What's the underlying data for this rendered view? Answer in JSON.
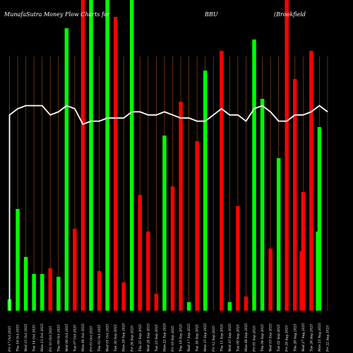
{
  "header": {
    "title": "MunafaSutra  Money Flow  Charts for",
    "symbol": "BBU",
    "company": "(Brookfield"
  },
  "colors": {
    "background": "#000000",
    "inflow": "#00ff00",
    "outflow": "#ff0000",
    "grid": "#8b4513",
    "line": "#ffffff",
    "text": "#ffffff"
  },
  "chart_data": {
    "type": "bar",
    "title": "MunafaSutra  Money Flow  Charts for BBU (Brookfield",
    "categories": [
      "Fri 17 Oct 2025",
      "Thu 16 Oct 2025",
      "Wed 15 Oct 2025",
      "Tue 14 Oct 2025",
      "Mon 13 Oct 2025",
      "Fri 10 Oct 2025",
      "Thu 09 Oct 2025",
      "Wed 08 Oct 2025",
      "Tue 07 Oct 2025",
      "Mon 06 Oct 2025",
      "Fri 03 Oct 2025",
      "Thu 02 Oct 2025",
      "Wed 01 Oct 2025",
      "Tue 30 Sep 2025",
      "Mon 29 Sep 2025",
      "Fri 26 Sep 2025",
      "Thu 25 Sep 2025",
      "Wed 24 Sep 2025",
      "Tue 23 Sep 2025",
      "Mon 22 Sep 2025",
      "Fri 19 Sep 2025",
      "Thu 18 Sep 2025",
      "Wed 17 Sep 2025",
      "Tue 16 Sep 2025",
      "Mon 15 Sep 2025",
      "Fri 12 Sep 2025",
      "Thu 11 Sep 2025",
      "Wed 10 Sep 2025",
      "Tue 09 Sep 2025",
      "Mon 08 Sep 2025",
      "Fri 05 Sep 2025",
      "Thu 04 Sep 2025",
      "Wed 03 Sep 2025",
      "Tue 02 Sep 2025",
      "Fri 29 Aug 2025",
      "Thu 28 Aug 2025",
      "Wed 27 Aug 2025",
      "Tue 26 Aug 2025",
      "Mon 25 Aug 2025",
      "Fri 22 Aug 2025"
    ],
    "series": [
      {
        "values": [
          4,
          36,
          19,
          13,
          13,
          15,
          12,
          100,
          29,
          110,
          110,
          14,
          110,
          104,
          10,
          110,
          41,
          28,
          6,
          62,
          44,
          74,
          3,
          60,
          85,
          0,
          92,
          3,
          37,
          5,
          96,
          75,
          22,
          54,
          110,
          82,
          42,
          92,
          65,
          0
        ],
        "directions": [
          "up",
          "up",
          "up",
          "up",
          "up",
          "down",
          "up",
          "up",
          "down",
          "down",
          "up",
          "down",
          "up",
          "down",
          "down",
          "up",
          "down",
          "down",
          "down",
          "up",
          "down",
          "down",
          "up",
          "down",
          "up",
          "up",
          "down",
          "up",
          "down",
          "down",
          "up",
          "up",
          "down",
          "up",
          "down",
          "down",
          "down",
          "down",
          "up",
          "up"
        ]
      },
      {
        "values": [
          63,
          65,
          66,
          66,
          66,
          63,
          64,
          66,
          65,
          60,
          61,
          61,
          62,
          62,
          62,
          64,
          64,
          63,
          63,
          64,
          63,
          62,
          62,
          61,
          61,
          63,
          65,
          63,
          63,
          61,
          65,
          66,
          64,
          61,
          61,
          63,
          63,
          64,
          66,
          64
        ]
      }
    ],
    "extra_bars": [
      {
        "after_index": 35,
        "value": 21,
        "direction": "down"
      },
      {
        "after_index": 37,
        "value": 28,
        "direction": "up"
      }
    ],
    "ylim": [
      0,
      110
    ],
    "line_ylim": [
      0,
      100
    ],
    "grid": true,
    "legend": "none"
  }
}
